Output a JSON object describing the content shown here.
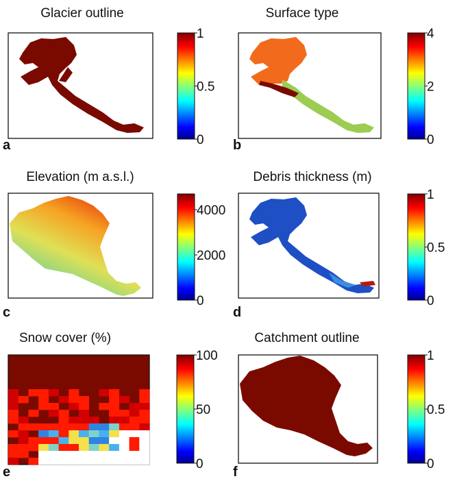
{
  "colors": {
    "dark_red": "#7a0a00",
    "orange": "#f26a1b",
    "lime": "#9ccc52",
    "background": "#ffffff",
    "frame": "#111111"
  },
  "chart_data": [
    {
      "type": "heatmap",
      "panel": "a",
      "title": "Glacier outline",
      "colorbar": {
        "min": 0,
        "max": 1,
        "ticks": [
          "0",
          "0.5",
          "1"
        ]
      }
    },
    {
      "type": "heatmap",
      "panel": "b",
      "title": "Surface type",
      "colorbar": {
        "min": 0,
        "max": 4,
        "ticks": [
          "0",
          "2",
          "4"
        ]
      }
    },
    {
      "type": "heatmap",
      "panel": "c",
      "title": "Elevation (m a.s.l.)",
      "colorbar": {
        "min": 0,
        "max": 4700,
        "ticks": [
          "0",
          "2000",
          "4000"
        ]
      }
    },
    {
      "type": "heatmap",
      "panel": "d",
      "title": "Debris thickness (m)",
      "colorbar": {
        "min": 0,
        "max": 1,
        "ticks": [
          "0",
          "0.5",
          "1"
        ]
      }
    },
    {
      "type": "heatmap",
      "panel": "e",
      "title": "Snow cover (%)",
      "colorbar": {
        "min": 0,
        "max": 100,
        "ticks": [
          "0",
          "50",
          "100"
        ]
      }
    },
    {
      "type": "heatmap",
      "panel": "f",
      "title": "Catchment outline",
      "colorbar": {
        "min": 0,
        "max": 1,
        "ticks": [
          "0",
          "0.5",
          "1"
        ]
      }
    }
  ]
}
